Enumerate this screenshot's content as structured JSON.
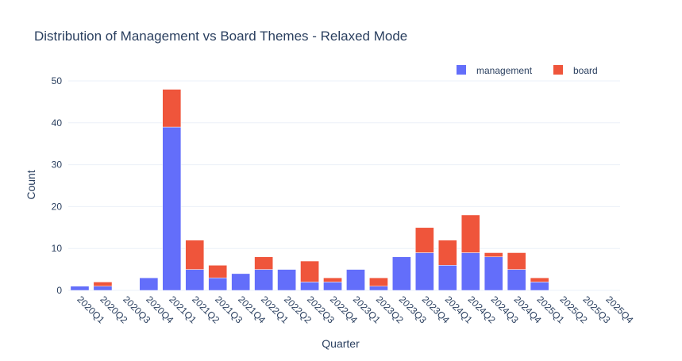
{
  "chart_data": {
    "type": "bar",
    "barmode": "stack",
    "title": "Distribution of Management vs Board Themes - Relaxed Mode",
    "xlabel": "Quarter",
    "ylabel": "Count",
    "ylim": [
      0,
      50
    ],
    "yticks": [
      0,
      10,
      20,
      30,
      40,
      50
    ],
    "grid": true,
    "legend_position": "top-right",
    "categories": [
      "2020Q1",
      "2020Q2",
      "2020Q3",
      "2020Q4",
      "2021Q1",
      "2021Q2",
      "2021Q3",
      "2021Q4",
      "2022Q1",
      "2022Q2",
      "2022Q3",
      "2022Q4",
      "2023Q1",
      "2023Q2",
      "2023Q3",
      "2023Q4",
      "2024Q1",
      "2024Q2",
      "2024Q3",
      "2024Q4",
      "2025Q1",
      "2025Q2",
      "2025Q3",
      "2025Q4"
    ],
    "series": [
      {
        "name": "management",
        "color": "#636efa",
        "values": [
          1,
          1,
          0,
          3,
          39,
          5,
          3,
          4,
          5,
          5,
          2,
          2,
          5,
          1,
          8,
          9,
          6,
          9,
          8,
          5,
          2,
          0,
          0,
          0
        ]
      },
      {
        "name": "board",
        "color": "#ef553b",
        "values": [
          0,
          1,
          0,
          0,
          9,
          7,
          3,
          0,
          3,
          0,
          5,
          1,
          0,
          2,
          0,
          6,
          6,
          9,
          1,
          4,
          1,
          0,
          0,
          0
        ]
      }
    ]
  }
}
